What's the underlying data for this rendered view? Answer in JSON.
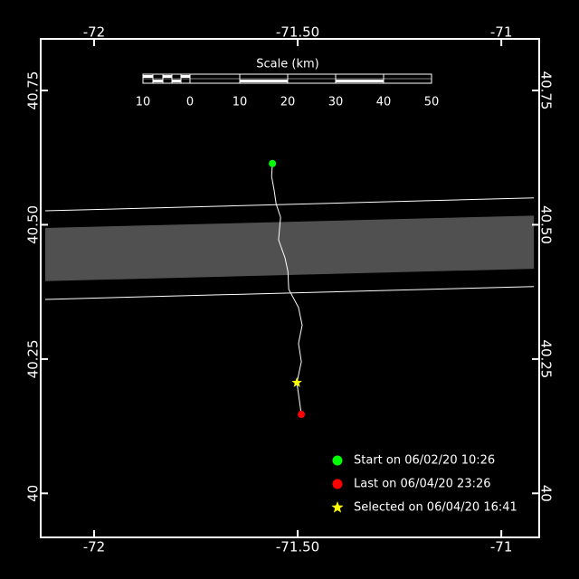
{
  "chart_data": {
    "type": "line",
    "scale_title": "Scale (km)",
    "scale_labels": [
      "10",
      "0",
      "10",
      "20",
      "30",
      "40",
      "50"
    ],
    "xlim": [
      -72.131,
      -70.907
    ],
    "ylim": [
      39.918,
      40.846
    ],
    "xticks": [
      -72,
      {
        "value": -71.5,
        "label": "-71.50"
      },
      -71
    ],
    "yticks": [
      40,
      {
        "value": 40.25,
        "label": "40.25"
      },
      {
        "value": 40.5,
        "label": "40.50"
      },
      40.75
    ],
    "swath": {
      "color": "#505050",
      "outer_top": {
        "x": [
          -72.12,
          -70.92
        ],
        "y": [
          40.526,
          40.55
        ]
      },
      "outer_bottom": {
        "x": [
          -72.12,
          -70.92
        ],
        "y": [
          40.361,
          40.385
        ]
      },
      "fill_top": {
        "x": [
          -72.12,
          -70.92
        ],
        "y": [
          40.494,
          40.517
        ]
      },
      "fill_bottom": {
        "x": [
          -72.12,
          -70.92
        ],
        "y": [
          40.395,
          40.418
        ]
      }
    },
    "series": [
      {
        "color": "#ffffff",
        "x": [
          -71.562,
          -71.564,
          -71.558,
          -71.553,
          -71.542,
          -71.547,
          -71.531,
          -71.524,
          -71.522,
          -71.498,
          -71.489,
          -71.498,
          -71.491,
          -71.502,
          -71.491
        ],
        "values": [
          40.614,
          40.59,
          40.565,
          40.539,
          40.514,
          40.472,
          40.438,
          40.413,
          40.38,
          40.346,
          40.313,
          40.279,
          40.245,
          40.206,
          40.147
        ]
      }
    ],
    "markers": [
      {
        "label": "Start on 06/02/20 10:26",
        "color": "#00ff00",
        "shape": "circle",
        "x": -71.562,
        "y": 40.614
      },
      {
        "label": "Last on 06/04/20 23:26",
        "color": "#ff0000",
        "shape": "circle",
        "x": -71.491,
        "y": 40.147
      },
      {
        "label": "Selected on 06/04/20 16:41",
        "color": "#ffff00",
        "shape": "star",
        "x": -71.502,
        "y": 40.206
      }
    ]
  }
}
